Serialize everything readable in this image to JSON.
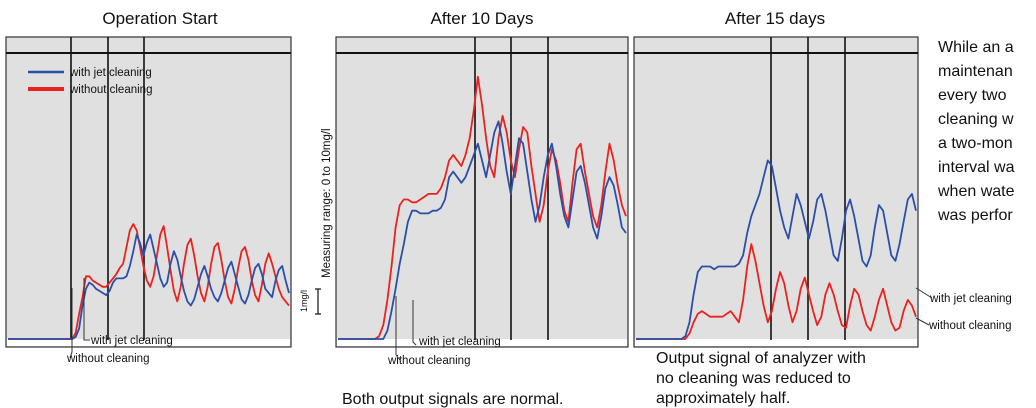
{
  "chart_data": [
    {
      "type": "line",
      "title": "Operation Start",
      "legend": [
        {
          "name": "with jet cleaning",
          "color": "#2b4fa8"
        },
        {
          "name": "without cleaning",
          "color": "#e8231f"
        }
      ],
      "annotations": [
        "with jet cleaning",
        "without cleaning"
      ],
      "series": [
        {
          "name": "with jet cleaning",
          "color": "#2b4fa8",
          "values": [
            0,
            0,
            0,
            0,
            0,
            0,
            0,
            0,
            0,
            0,
            0,
            0,
            0,
            0,
            0,
            0,
            0,
            0,
            0,
            0,
            1,
            5,
            16,
            24,
            27,
            26,
            24,
            23,
            22,
            21,
            23,
            27,
            29,
            29,
            29,
            30,
            35,
            42,
            50,
            46,
            40,
            46,
            50,
            43,
            36,
            29,
            25,
            27,
            36,
            42,
            38,
            30,
            23,
            18,
            16,
            19,
            25,
            31,
            35,
            30,
            24,
            20,
            18,
            22,
            28,
            34,
            37,
            31,
            25,
            19,
            17,
            21,
            28,
            34,
            36,
            31,
            24,
            22,
            20,
            28,
            33,
            35,
            28,
            22
          ]
        },
        {
          "name": "without cleaning",
          "color": "#e8231f",
          "values": [
            0,
            0,
            0,
            0,
            0,
            0,
            0,
            0,
            0,
            0,
            0,
            0,
            0,
            0,
            0,
            0,
            0,
            0,
            0,
            0,
            3,
            12,
            20,
            30,
            30,
            28,
            27,
            26,
            25,
            25,
            27,
            29,
            31,
            34,
            36,
            44,
            52,
            55,
            52,
            44,
            35,
            28,
            25,
            30,
            40,
            50,
            54,
            44,
            33,
            23,
            18,
            25,
            36,
            45,
            48,
            40,
            30,
            22,
            18,
            25,
            36,
            44,
            46,
            38,
            28,
            20,
            17,
            24,
            34,
            42,
            44,
            38,
            28,
            21,
            18,
            26,
            36,
            41,
            36,
            30,
            24,
            20,
            18,
            16
          ]
        }
      ]
    },
    {
      "type": "line",
      "title": "After 10 Days",
      "ylabel": "Measuring range: 0 to 10mg/l",
      "scale_label": "1mg/l",
      "annotations": [
        "with jet cleaning",
        "without cleaning"
      ],
      "series": [
        {
          "name": "with jet cleaning",
          "color": "#2b4fa8",
          "values": [
            0,
            0,
            0,
            0,
            0,
            0,
            0,
            0,
            0,
            0,
            0,
            0,
            3,
            10,
            18,
            27,
            34,
            42,
            46,
            46,
            45,
            45,
            45,
            46,
            46,
            47,
            50,
            58,
            60,
            58,
            56,
            58,
            62,
            66,
            70,
            64,
            58,
            66,
            74,
            78,
            70,
            60,
            52,
            62,
            72,
            70,
            60,
            50,
            42,
            48,
            58,
            66,
            70,
            62,
            52,
            44,
            40,
            50,
            60,
            62,
            56,
            48,
            40,
            36,
            44,
            54,
            58,
            55,
            48,
            40,
            38
          ]
        },
        {
          "name": "without cleaning",
          "color": "#e8231f",
          "values": [
            0,
            0,
            0,
            0,
            0,
            0,
            0,
            0,
            0,
            0,
            1,
            5,
            14,
            26,
            40,
            48,
            50,
            50,
            49,
            49,
            50,
            51,
            52,
            52,
            52,
            54,
            58,
            64,
            66,
            64,
            62,
            66,
            72,
            82,
            94,
            84,
            72,
            62,
            58,
            72,
            80,
            74,
            64,
            58,
            68,
            76,
            74,
            62,
            52,
            42,
            48,
            60,
            68,
            64,
            56,
            46,
            42,
            56,
            68,
            70,
            60,
            52,
            44,
            40,
            48,
            60,
            70,
            64,
            55,
            48,
            44
          ]
        }
      ]
    },
    {
      "type": "line",
      "title": "After 15 days",
      "annotations": [
        "with jet cleaning",
        "without cleaning"
      ],
      "series": [
        {
          "name": "with jet cleaning",
          "color": "#2b4fa8",
          "values": [
            0,
            0,
            0,
            0,
            0,
            0,
            0,
            0,
            0,
            0,
            0,
            0,
            1,
            6,
            16,
            24,
            26,
            26,
            26,
            25,
            26,
            26,
            26,
            26,
            26,
            27,
            30,
            38,
            44,
            48,
            52,
            58,
            64,
            62,
            54,
            46,
            40,
            36,
            44,
            52,
            48,
            42,
            36,
            42,
            50,
            52,
            46,
            38,
            30,
            28,
            36,
            46,
            50,
            44,
            36,
            28,
            26,
            30,
            40,
            48,
            46,
            38,
            30,
            28,
            34,
            42,
            50,
            52,
            46
          ]
        },
        {
          "name": "without cleaning",
          "color": "#e8231f",
          "values": [
            0,
            0,
            0,
            0,
            0,
            0,
            0,
            0,
            0,
            0,
            0,
            0,
            0,
            2,
            6,
            9,
            10,
            9,
            8,
            8,
            8,
            8,
            9,
            10,
            8,
            6,
            14,
            26,
            34,
            28,
            20,
            12,
            6,
            10,
            18,
            24,
            20,
            12,
            6,
            10,
            18,
            22,
            16,
            10,
            5,
            8,
            16,
            20,
            16,
            10,
            5,
            4,
            12,
            18,
            16,
            10,
            5,
            3,
            8,
            14,
            18,
            12,
            6,
            3,
            4,
            10,
            14,
            12,
            8
          ]
        }
      ]
    }
  ],
  "right_note": [
    "While an a",
    "maintenan",
    "every two",
    "cleaning w",
    "a two-mon",
    "interval wa",
    "when wate",
    "was perfor"
  ],
  "notes": {
    "both_normal": "Both output signals are normal.",
    "reduced": [
      "Output signal of analyzer with",
      "no cleaning was reduced to",
      "approximately half."
    ]
  },
  "colors": {
    "background": "#e0e0e0",
    "blue": "#2b4fa8",
    "red": "#e8231f"
  }
}
